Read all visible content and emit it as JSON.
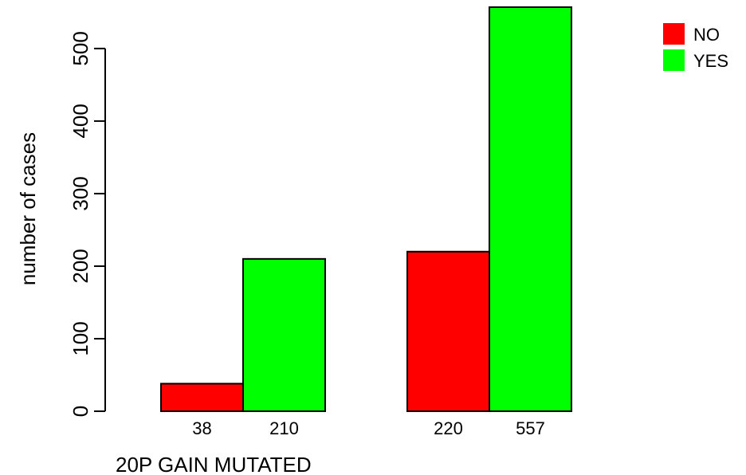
{
  "chart_data": {
    "type": "bar",
    "categories": [
      "",
      ""
    ],
    "series": [
      {
        "name": "NO",
        "values": [
          38,
          220
        ],
        "color": "#ff0000"
      },
      {
        "name": "YES",
        "values": [
          210,
          557
        ],
        "color": "#00ff00"
      }
    ],
    "title": "",
    "xlabel": "20P GAIN MUTATED",
    "ylabel": "number of cases",
    "ylim": [
      0,
      557
    ],
    "yticks": [
      0,
      100,
      200,
      300,
      400,
      500
    ],
    "grid": false,
    "legend": {
      "position": "top-right",
      "entries": [
        "NO",
        "YES"
      ]
    }
  }
}
